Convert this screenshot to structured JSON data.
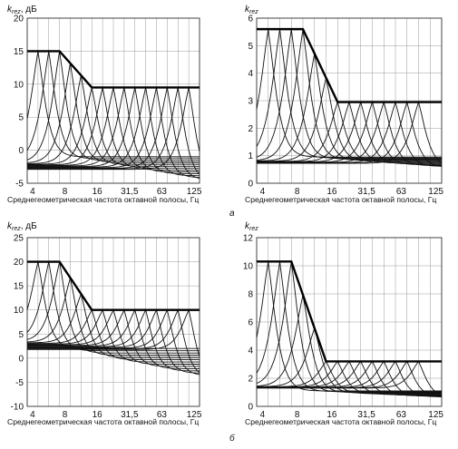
{
  "panel_labels": [
    "а",
    "б"
  ],
  "chart_data": [
    {
      "type": "line",
      "ylabel_main": "k",
      "ylabel_sub": "rez",
      "ylabel_unit": ", дБ",
      "xlabel": "Среднегеометрическая частота октавной полосы, Гц",
      "x_ticks": [
        "4",
        "8",
        "16",
        "31,5",
        "63",
        "125"
      ],
      "ylim": [
        -5,
        20
      ],
      "y_ticks": [
        -5,
        0,
        5,
        10,
        15,
        20
      ],
      "grid": true,
      "envelope": {
        "high": 15,
        "low": 9.5,
        "plateau_end_index": 3,
        "drop_end_index": 6
      },
      "family": {
        "count": 15,
        "base_first": -1.0,
        "base_last": -5.0,
        "start_level": -2.0
      }
    },
    {
      "type": "line",
      "ylabel_main": "k",
      "ylabel_sub": "rez",
      "ylabel_unit": "",
      "xlabel": "Среднегеометрическая частота октавной полосы, Гц",
      "x_ticks": [
        "4",
        "8",
        "16",
        "31,5",
        "63",
        "125"
      ],
      "ylim": [
        0,
        6
      ],
      "y_ticks": [
        0,
        1,
        2,
        3,
        4,
        5,
        6
      ],
      "grid": true,
      "envelope": {
        "high": 5.6,
        "low": 2.95,
        "plateau_end_index": 4,
        "drop_end_index": 7
      },
      "family": {
        "count": 14,
        "base_first": 0.95,
        "base_last": 0.55,
        "start_level": 0.8
      }
    },
    {
      "type": "line",
      "ylabel_main": "k",
      "ylabel_sub": "rez",
      "ylabel_unit": ", дБ",
      "xlabel": "Среднегеометрическая частота октавной полосы, Гц",
      "x_ticks": [
        "4",
        "8",
        "16",
        "31,5",
        "63",
        "125"
      ],
      "ylim": [
        -10,
        25
      ],
      "y_ticks": [
        -10,
        -5,
        0,
        5,
        10,
        15,
        20,
        25
      ],
      "grid": true,
      "envelope": {
        "high": 20,
        "low": 10,
        "plateau_end_index": 3,
        "drop_end_index": 6
      },
      "family": {
        "count": 15,
        "base_first": 2.0,
        "base_last": -4.5,
        "start_level": 4.5
      }
    },
    {
      "type": "line",
      "ylabel_main": "k",
      "ylabel_sub": "rez",
      "ylabel_unit": "",
      "xlabel": "Среднегеометрическая частота октавной полосы, Гц",
      "x_ticks": [
        "4",
        "8",
        "16",
        "31,5",
        "63",
        "125"
      ],
      "ylim": [
        0,
        12
      ],
      "y_ticks": [
        0,
        2,
        4,
        6,
        8,
        10,
        12
      ],
      "grid": true,
      "envelope": {
        "high": 10.3,
        "low": 3.2,
        "plateau_end_index": 3,
        "drop_end_index": 6
      },
      "family": {
        "count": 14,
        "base_first": 1.1,
        "base_last": 0.6,
        "start_level": 1.6
      }
    }
  ]
}
